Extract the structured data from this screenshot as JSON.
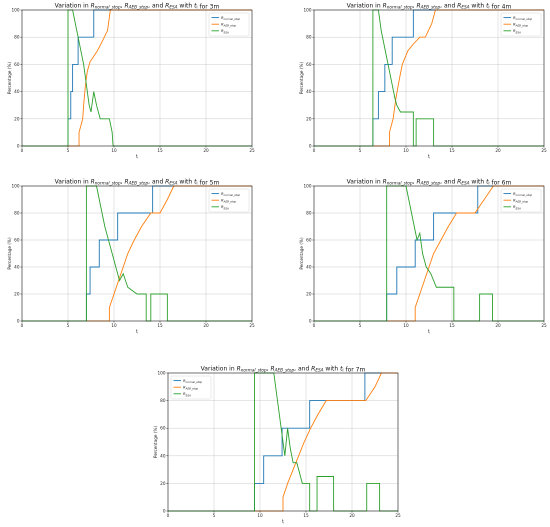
{
  "chart_data": [
    {
      "type": "line",
      "title": "Variation in R_normal_stop, R_AEB_stop, and R_ESA with t_i for 3m",
      "xlabel": "t_i",
      "ylabel": "Percentage (%)",
      "xlim": [
        0,
        25
      ],
      "ylim": [
        0,
        100
      ],
      "xticks": [
        0,
        5,
        10,
        15,
        20,
        25
      ],
      "yticks": [
        0,
        20,
        40,
        60,
        80,
        100
      ],
      "grid": true,
      "legend": "top-right",
      "series": [
        {
          "name": "R_normal_stop",
          "color": "#1f77b4",
          "x": [
            0,
            5.0,
            5.0,
            5.3,
            5.3,
            5.5,
            5.5,
            6.1,
            6.1,
            7.8,
            7.8,
            25
          ],
          "y": [
            0,
            0,
            20,
            20,
            40,
            40,
            60,
            60,
            80,
            80,
            100,
            100
          ]
        },
        {
          "name": "R_AEB_stop",
          "color": "#ff7f0e",
          "x": [
            0,
            6.2,
            6.2,
            6.6,
            6.7,
            6.9,
            7.1,
            7.4,
            7.7,
            8.2,
            8.8,
            9.3,
            9.6,
            25
          ],
          "y": [
            0,
            0,
            10,
            20,
            30,
            45,
            55,
            62,
            65,
            70,
            78,
            85,
            100,
            100
          ]
        },
        {
          "name": "R_ESA",
          "color": "#2ca02c",
          "x": [
            0,
            5.0,
            5.0,
            5.5,
            5.8,
            6.1,
            6.4,
            6.7,
            7.0,
            7.3,
            7.5,
            7.8,
            8.1,
            8.5,
            9.0,
            9.5,
            9.8,
            9.9,
            25
          ],
          "y": [
            0,
            0,
            100,
            100,
            90,
            80,
            70,
            60,
            45,
            30,
            25,
            40,
            30,
            20,
            20,
            20,
            10,
            0,
            0
          ]
        }
      ]
    },
    {
      "type": "line",
      "title": "Variation in R_normal_stop, R_AEB_stop, and R_ESA with t_i for 4m",
      "xlabel": "t_i",
      "ylabel": "Percentage (%)",
      "xlim": [
        0,
        25
      ],
      "ylim": [
        0,
        100
      ],
      "xticks": [
        0,
        5,
        10,
        15,
        20,
        25
      ],
      "yticks": [
        0,
        20,
        40,
        60,
        80,
        100
      ],
      "grid": true,
      "legend": "top-right",
      "series": [
        {
          "name": "R_normal_stop",
          "color": "#1f77b4",
          "x": [
            0,
            6.4,
            6.4,
            7.0,
            7.0,
            7.7,
            7.7,
            8.5,
            8.5,
            10.8,
            10.8,
            25
          ],
          "y": [
            0,
            0,
            20,
            20,
            40,
            40,
            60,
            60,
            80,
            80,
            100,
            100
          ]
        },
        {
          "name": "R_AEB_stop",
          "color": "#ff7f0e",
          "x": [
            0,
            8.2,
            8.2,
            8.6,
            8.9,
            9.3,
            9.6,
            10.2,
            10.8,
            11.5,
            12.1,
            12.8,
            13.2,
            25
          ],
          "y": [
            0,
            0,
            10,
            20,
            35,
            50,
            60,
            70,
            75,
            80,
            80,
            90,
            100,
            100
          ]
        },
        {
          "name": "R_ESA",
          "color": "#2ca02c",
          "x": [
            0,
            6.4,
            6.4,
            7.0,
            7.3,
            7.6,
            7.9,
            8.2,
            8.5,
            8.8,
            9.0,
            9.4,
            10.0,
            10.8,
            10.8,
            11.1,
            11.1,
            13.0,
            13.0,
            25
          ],
          "y": [
            0,
            0,
            100,
            100,
            85,
            75,
            65,
            55,
            45,
            35,
            30,
            25,
            25,
            25,
            0,
            0,
            20,
            20,
            0,
            0
          ]
        }
      ]
    },
    {
      "type": "line",
      "title": "Variation in R_normal_stop, R_AEB_stop, and R_ESA with t_i for 5m",
      "xlabel": "t_i",
      "ylabel": "Percentage (%)",
      "xlim": [
        0,
        25
      ],
      "ylim": [
        0,
        100
      ],
      "xticks": [
        0,
        5,
        10,
        15,
        20,
        25
      ],
      "yticks": [
        0,
        20,
        40,
        60,
        80,
        100
      ],
      "grid": true,
      "legend": "top-right",
      "series": [
        {
          "name": "R_normal_stop",
          "color": "#1f77b4",
          "x": [
            0,
            7.0,
            7.0,
            7.4,
            7.4,
            8.4,
            8.4,
            10.4,
            10.4,
            14.2,
            14.2,
            25
          ],
          "y": [
            0,
            0,
            20,
            20,
            40,
            40,
            60,
            60,
            80,
            80,
            100,
            100
          ]
        },
        {
          "name": "R_AEB_stop",
          "color": "#ff7f0e",
          "x": [
            0,
            9.5,
            9.5,
            10.0,
            10.5,
            11.0,
            11.5,
            12.2,
            13.0,
            14.0,
            15.0,
            15.8,
            16.5,
            25
          ],
          "y": [
            0,
            0,
            10,
            20,
            30,
            40,
            50,
            60,
            70,
            80,
            80,
            90,
            100,
            100
          ]
        },
        {
          "name": "R_ESA",
          "color": "#2ca02c",
          "x": [
            0,
            7.0,
            7.0,
            8.1,
            8.4,
            8.7,
            9.0,
            9.4,
            9.8,
            10.2,
            10.6,
            11.0,
            11.5,
            12.5,
            13.5,
            13.5,
            14.0,
            14.0,
            15.8,
            15.8,
            25
          ],
          "y": [
            0,
            0,
            100,
            100,
            90,
            80,
            70,
            60,
            50,
            40,
            30,
            35,
            25,
            20,
            20,
            0,
            0,
            20,
            20,
            0,
            0
          ]
        }
      ]
    },
    {
      "type": "line",
      "title": "Variation in R_normal_stop, R_AEB_stop, and R_ESA with t_i for 6m",
      "xlabel": "t_i",
      "ylabel": "Percentage (%)",
      "xlim": [
        0,
        25
      ],
      "ylim": [
        0,
        100
      ],
      "xticks": [
        0,
        5,
        10,
        15,
        20,
        25
      ],
      "yticks": [
        0,
        20,
        40,
        60,
        80,
        100
      ],
      "grid": true,
      "legend": "top-right",
      "series": [
        {
          "name": "R_normal_stop",
          "color": "#1f77b4",
          "x": [
            0,
            7.9,
            7.9,
            9.0,
            9.0,
            11.0,
            11.0,
            13.0,
            13.0,
            17.8,
            17.8,
            25
          ],
          "y": [
            0,
            0,
            20,
            20,
            40,
            40,
            60,
            60,
            80,
            80,
            100,
            100
          ]
        },
        {
          "name": "R_AEB_stop",
          "color": "#ff7f0e",
          "x": [
            0,
            11.0,
            11.0,
            11.5,
            12.0,
            12.5,
            13.0,
            13.8,
            14.6,
            15.5,
            16.5,
            17.5,
            18.5,
            19.5,
            25
          ],
          "y": [
            0,
            0,
            10,
            20,
            30,
            40,
            50,
            60,
            70,
            80,
            80,
            80,
            90,
            100,
            100
          ]
        },
        {
          "name": "R_ESA",
          "color": "#2ca02c",
          "x": [
            0,
            7.9,
            7.9,
            10.0,
            10.3,
            10.6,
            10.9,
            11.2,
            11.5,
            11.8,
            12.2,
            12.7,
            13.3,
            13.8,
            14.6,
            15.2,
            15.2,
            18.0,
            18.0,
            19.4,
            19.4,
            25
          ],
          "y": [
            0,
            0,
            100,
            100,
            90,
            80,
            70,
            60,
            65,
            50,
            40,
            35,
            25,
            25,
            25,
            25,
            0,
            0,
            20,
            20,
            0,
            0
          ]
        }
      ]
    },
    {
      "type": "line",
      "title": "Variation in R_normal_stop, R_AEB_stop, and R_ESA with t_i for 7m",
      "xlabel": "t_i",
      "ylabel": "Percentage (%)",
      "xlim": [
        0,
        25
      ],
      "ylim": [
        0,
        100
      ],
      "xticks": [
        0,
        5,
        10,
        15,
        20,
        25
      ],
      "yticks": [
        0,
        20,
        40,
        60,
        80,
        100
      ],
      "grid": true,
      "legend": "top-left",
      "series": [
        {
          "name": "R_normal_stop",
          "color": "#1f77b4",
          "x": [
            0,
            9.4,
            9.4,
            10.4,
            10.4,
            12.4,
            12.4,
            15.4,
            15.4,
            21.4,
            21.4,
            25
          ],
          "y": [
            0,
            0,
            20,
            20,
            40,
            40,
            60,
            60,
            80,
            80,
            100,
            100
          ]
        },
        {
          "name": "R_AEB_stop",
          "color": "#ff7f0e",
          "x": [
            0,
            12.5,
            12.5,
            13.0,
            13.6,
            14.2,
            14.8,
            15.5,
            16.3,
            17.2,
            18.5,
            20.0,
            21.5,
            22.5,
            23.2,
            25
          ],
          "y": [
            0,
            0,
            10,
            20,
            30,
            40,
            50,
            60,
            70,
            80,
            80,
            80,
            80,
            90,
            100,
            100
          ]
        },
        {
          "name": "R_ESA",
          "color": "#2ca02c",
          "x": [
            0,
            9.4,
            9.4,
            11.5,
            11.8,
            12.1,
            12.4,
            12.7,
            13.0,
            13.3,
            13.6,
            14.0,
            14.6,
            15.4,
            15.4,
            16.2,
            16.2,
            18.0,
            18.0,
            21.6,
            21.6,
            23.0,
            23.0,
            25
          ],
          "y": [
            0,
            0,
            100,
            100,
            85,
            70,
            55,
            40,
            60,
            45,
            35,
            35,
            20,
            20,
            0,
            0,
            25,
            25,
            0,
            0,
            20,
            20,
            0,
            0
          ]
        }
      ]
    }
  ]
}
